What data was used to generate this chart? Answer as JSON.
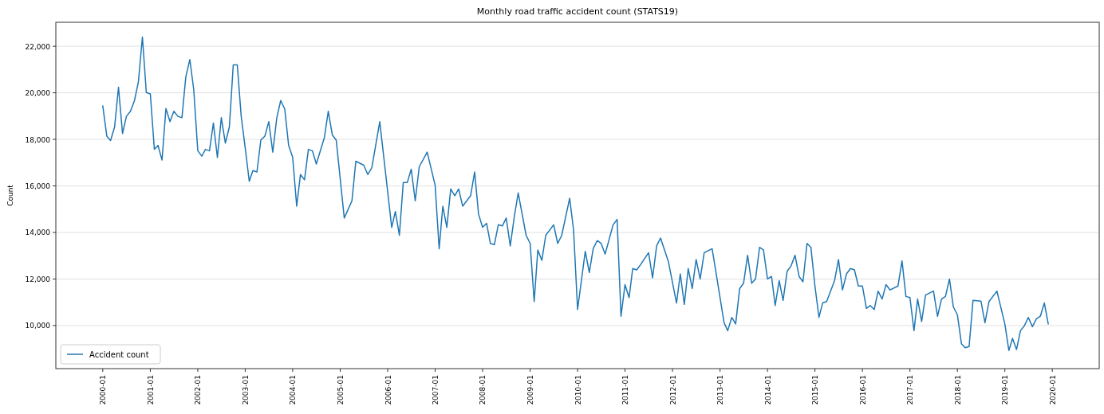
{
  "chart_data": {
    "type": "line",
    "title": "Monthly road traffic accident count (STATS19)",
    "ylabel": "Count",
    "legend": "bottom left",
    "grid": "y",
    "xlim": [
      "1999-01-05",
      "2020-12-27"
    ],
    "ylim": [
      8150,
      23030
    ],
    "xticks": [
      "2000-01",
      "2001-01",
      "2002-01",
      "2003-01",
      "2004-01",
      "2005-01",
      "2006-01",
      "2007-01",
      "2008-01",
      "2009-01",
      "2010-01",
      "2011-01",
      "2012-01",
      "2013-01",
      "2014-01",
      "2015-01",
      "2016-01",
      "2017-01",
      "2018-01",
      "2019-01",
      "2020-01"
    ],
    "yticks": [
      {
        "value": 10000,
        "label": "10,000"
      },
      {
        "value": 12000,
        "label": "12,000"
      },
      {
        "value": 14000,
        "label": "14,000"
      },
      {
        "value": 16000,
        "label": "16,000"
      },
      {
        "value": 18000,
        "label": "18,000"
      },
      {
        "value": 20000,
        "label": "20,000"
      },
      {
        "value": 22000,
        "label": "22,000"
      }
    ],
    "series": [
      {
        "name": "Accident count",
        "color": "#1f77b4",
        "x": [
          "2000-01",
          "2000-02",
          "2000-03",
          "2000-04",
          "2000-05",
          "2000-06",
          "2000-07",
          "2000-08",
          "2000-09",
          "2000-10",
          "2000-11",
          "2000-12",
          "2001-01",
          "2001-02",
          "2001-03",
          "2001-04",
          "2001-05",
          "2001-06",
          "2001-07",
          "2001-08",
          "2001-09",
          "2001-10",
          "2001-11",
          "2001-12",
          "2002-01",
          "2002-02",
          "2002-03",
          "2002-04",
          "2002-05",
          "2002-06",
          "2002-07",
          "2002-08",
          "2002-09",
          "2002-10",
          "2002-11",
          "2002-12",
          "2003-01",
          "2003-02",
          "2003-03",
          "2003-04",
          "2003-05",
          "2003-06",
          "2003-07",
          "2003-08",
          "2003-09",
          "2003-10",
          "2003-11",
          "2003-12",
          "2004-01",
          "2004-02",
          "2004-03",
          "2004-04",
          "2004-05",
          "2004-06",
          "2004-07",
          "2004-09",
          "2004-10",
          "2004-11",
          "2004-12",
          "2005-02",
          "2005-04",
          "2005-05",
          "2005-07",
          "2005-08",
          "2005-09",
          "2005-11",
          "2005-12",
          "2006-02",
          "2006-03",
          "2006-04",
          "2006-05",
          "2006-06",
          "2006-07",
          "2006-08",
          "2006-09",
          "2006-11",
          "2007-01",
          "2007-02",
          "2007-03",
          "2007-04",
          "2007-05",
          "2007-06",
          "2007-07",
          "2007-08",
          "2007-10",
          "2007-11",
          "2007-12",
          "2008-01",
          "2008-02",
          "2008-03",
          "2008-04",
          "2008-05",
          "2008-06",
          "2008-07",
          "2008-08",
          "2008-09",
          "2008-10",
          "2008-12",
          "2009-01",
          "2009-02",
          "2009-03",
          "2009-04",
          "2009-05",
          "2009-07",
          "2009-08",
          "2009-09",
          "2009-11",
          "2009-12",
          "2010-01",
          "2010-03",
          "2010-04",
          "2010-05",
          "2010-06",
          "2010-07",
          "2010-08",
          "2010-10",
          "2010-11",
          "2010-12",
          "2011-01",
          "2011-02",
          "2011-03",
          "2011-04",
          "2011-05",
          "2011-07",
          "2011-08",
          "2011-09",
          "2011-10",
          "2011-12",
          "2012-02",
          "2012-03",
          "2012-04",
          "2012-05",
          "2012-06",
          "2012-07",
          "2012-08",
          "2012-09",
          "2012-11",
          "2012-12",
          "2013-02",
          "2013-03",
          "2013-04",
          "2013-05",
          "2013-06",
          "2013-07",
          "2013-08",
          "2013-09",
          "2013-10",
          "2013-11",
          "2013-12",
          "2014-01",
          "2014-02",
          "2014-03",
          "2014-04",
          "2014-05",
          "2014-06",
          "2014-07",
          "2014-08",
          "2014-09",
          "2014-10",
          "2014-11",
          "2014-12",
          "2015-01",
          "2015-02",
          "2015-03",
          "2015-04",
          "2015-06",
          "2015-07",
          "2015-08",
          "2015-09",
          "2015-10",
          "2015-11",
          "2015-12",
          "2016-01",
          "2016-02",
          "2016-03",
          "2016-04",
          "2016-05",
          "2016-06",
          "2016-07",
          "2016-08",
          "2016-10",
          "2016-11",
          "2016-12",
          "2017-01",
          "2017-02",
          "2017-03",
          "2017-04",
          "2017-05",
          "2017-07",
          "2017-08",
          "2017-09",
          "2017-10",
          "2017-11",
          "2017-12",
          "2018-01",
          "2018-02",
          "2018-03",
          "2018-04",
          "2018-05",
          "2018-07",
          "2018-08",
          "2018-09",
          "2018-11",
          "2019-01",
          "2019-02",
          "2019-03",
          "2019-04",
          "2019-05",
          "2019-06",
          "2019-07",
          "2019-08",
          "2019-09",
          "2019-10",
          "2019-11",
          "2019-12"
        ],
        "values": [
          19440,
          18140,
          17950,
          18530,
          20240,
          18250,
          18990,
          19210,
          19670,
          20470,
          22400,
          20010,
          19950,
          17570,
          17740,
          17110,
          19330,
          18760,
          19210,
          18990,
          18930,
          20690,
          21430,
          20130,
          17510,
          17280,
          17570,
          17510,
          18700,
          17220,
          18930,
          17840,
          18530,
          21200,
          21200,
          18990,
          17630,
          16200,
          16660,
          16600,
          17970,
          18140,
          18760,
          17450,
          18930,
          19670,
          19300,
          17740,
          17230,
          15130,
          16490,
          16260,
          17570,
          17510,
          16940,
          18080,
          19210,
          18190,
          17970,
          14620,
          15360,
          17060,
          16890,
          16490,
          16780,
          18760,
          17280,
          14220,
          14900,
          13880,
          16150,
          16150,
          16720,
          15360,
          16830,
          17450,
          16030,
          13300,
          15130,
          14220,
          15870,
          15580,
          15870,
          15130,
          15580,
          16600,
          14790,
          14220,
          14390,
          13530,
          13480,
          14330,
          14280,
          14620,
          13420,
          14670,
          15700,
          13880,
          13530,
          11030,
          13250,
          12800,
          13880,
          14330,
          13530,
          13880,
          15470,
          14110,
          10690,
          13190,
          12280,
          13300,
          13650,
          13530,
          13070,
          14330,
          14560,
          10400,
          11760,
          11200,
          12450,
          12390,
          12620,
          13130,
          12050,
          13420,
          13760,
          12740,
          10970,
          12220,
          10910,
          12450,
          11590,
          12840,
          12000,
          13130,
          13300,
          12280,
          10120,
          9780,
          10350,
          10070,
          11590,
          11820,
          13020,
          11820,
          12000,
          13360,
          13250,
          12000,
          12110,
          10860,
          11930,
          11080,
          12330,
          12560,
          13020,
          12110,
          11880,
          13530,
          13360,
          11700,
          10350,
          10970,
          11030,
          11930,
          12840,
          11530,
          12220,
          12450,
          12390,
          11700,
          11700,
          10740,
          10860,
          10690,
          11480,
          11140,
          11760,
          11530,
          11700,
          12780,
          11250,
          11200,
          9780,
          11140,
          10170,
          11310,
          11480,
          10400,
          11140,
          11250,
          12000,
          10800,
          10460,
          9220,
          9050,
          9100,
          11080,
          11050,
          10120,
          11030,
          11480,
          10070,
          8930,
          9450,
          8970,
          9780,
          10000,
          10350,
          9950,
          10290,
          10400,
          10970,
          10070
        ]
      }
    ]
  }
}
